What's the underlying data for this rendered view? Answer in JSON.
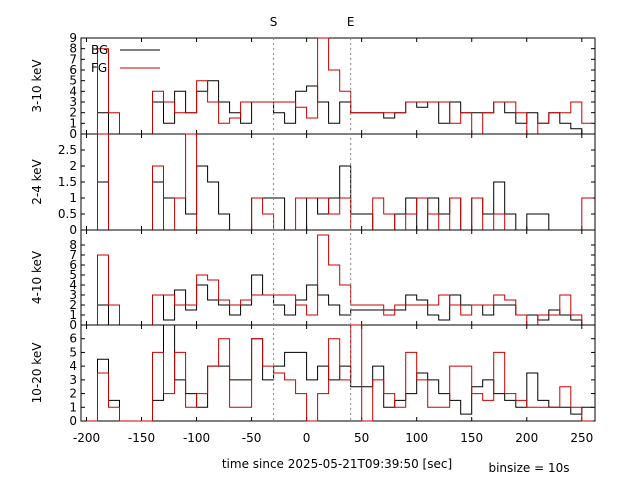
{
  "chart_data": {
    "type": "line",
    "xlabel": "time since 2025-05-21T09:39:50 [sec]",
    "binsize_label": "binsize = 10s",
    "xlim": [
      -205,
      262
    ],
    "x_ticks": [
      -200,
      -150,
      -100,
      -50,
      0,
      50,
      100,
      150,
      200,
      250
    ],
    "markers": [
      {
        "label": "S",
        "x": -30
      },
      {
        "label": "E",
        "x": 40
      }
    ],
    "legend": {
      "placement": "top-left",
      "entries": [
        {
          "name": "BG",
          "color": "#000000"
        },
        {
          "name": "FG",
          "color": "#cc0000"
        }
      ]
    },
    "x": [
      -200,
      -190,
      -180,
      -170,
      -160,
      -150,
      -140,
      -130,
      -120,
      -110,
      -100,
      -90,
      -80,
      -70,
      -60,
      -50,
      -40,
      -30,
      -20,
      -10,
      0,
      10,
      20,
      30,
      40,
      50,
      60,
      70,
      80,
      90,
      100,
      110,
      120,
      130,
      140,
      150,
      160,
      170,
      180,
      190,
      200,
      210,
      220,
      230,
      240,
      250
    ],
    "panels": [
      {
        "ylabel": "3-10 keV",
        "ylim": [
          0,
          9
        ],
        "y_ticks": [
          0,
          1,
          2,
          3,
          4,
          5,
          6,
          7,
          8,
          9
        ],
        "series": [
          {
            "name": "BG",
            "color": "#000000",
            "values": [
              0,
              2,
              0,
              0,
              0,
              0,
              3,
              1,
              4,
              2,
              4,
              5,
              3,
              2,
              1,
              3,
              3,
              2,
              1,
              4,
              4.5,
              3,
              1,
              3,
              2,
              2,
              2,
              1.5,
              2,
              3,
              2.5,
              3,
              1,
              3,
              2,
              2,
              2,
              3,
              2,
              1,
              2,
              1,
              2,
              1,
              0.5,
              0
            ]
          },
          {
            "name": "FG",
            "color": "#cc0000",
            "values": [
              0,
              8,
              2,
              0,
              0,
              0,
              4,
              3,
              2,
              2,
              5,
              3,
              1,
              1.5,
              3,
              3,
              3,
              3,
              3,
              2.5,
              1.5,
              9,
              6,
              4,
              2,
              2,
              2,
              2,
              2,
              3,
              3,
              3,
              3,
              1,
              2,
              0,
              2,
              3,
              3,
              2,
              0,
              1,
              2,
              2,
              3,
              1
            ]
          }
        ]
      },
      {
        "ylabel": "2-4 keV",
        "ylim": [
          0,
          3
        ],
        "y_ticks": [
          0,
          0.5,
          1,
          1.5,
          2,
          2.5
        ],
        "series": [
          {
            "name": "BG",
            "color": "#000000",
            "values": [
              0,
              1.5,
              0,
              0,
              0,
              0,
              1.5,
              1,
              1,
              0.5,
              2,
              1.5,
              0.5,
              0,
              0,
              1,
              1,
              1,
              0,
              0,
              1,
              0.5,
              1,
              2,
              0.5,
              0.5,
              0,
              0,
              0.5,
              1,
              0,
              1,
              0.5,
              1,
              0,
              1,
              0.5,
              1.5,
              0.5,
              0,
              0.5,
              0.5,
              0,
              0,
              0,
              0
            ]
          },
          {
            "name": "FG",
            "color": "#cc0000",
            "values": [
              0,
              3,
              0,
              0,
              0,
              0,
              2,
              0,
              1,
              3,
              0,
              0,
              0,
              0,
              0,
              1,
              0.5,
              0,
              0,
              1,
              1,
              1,
              0.5,
              1,
              0,
              0,
              1,
              0.5,
              0,
              0.5,
              1,
              0.5,
              0,
              1,
              0,
              1,
              0,
              0.5,
              0,
              0,
              0,
              0,
              0,
              0,
              0,
              1
            ]
          }
        ]
      },
      {
        "ylabel": "4-10 keV",
        "ylim": [
          0,
          9.5
        ],
        "y_ticks": [
          0,
          1,
          2,
          3,
          4,
          5,
          6,
          7,
          8
        ],
        "series": [
          {
            "name": "BG",
            "color": "#000000",
            "values": [
              0,
              2,
              0,
              0,
              0,
              0,
              3,
              0.5,
              3.5,
              1.5,
              4,
              2.5,
              2,
              1,
              2,
              5,
              3,
              2,
              1,
              2.5,
              4,
              3,
              2,
              1,
              1.5,
              1.5,
              1.5,
              1.5,
              1.5,
              3,
              2.5,
              1,
              0.5,
              3,
              2,
              2,
              1,
              2,
              2,
              1,
              1,
              0.5,
              1.5,
              1,
              0.5,
              0
            ]
          },
          {
            "name": "FG",
            "color": "#cc0000",
            "values": [
              0,
              7,
              2,
              0,
              0,
              0,
              3,
              3,
              2,
              2,
              5,
              4.5,
              2.5,
              2,
              2.5,
              3,
              3,
              3,
              3,
              2,
              1,
              9,
              6,
              4,
              2,
              2,
              2,
              1,
              2,
              2,
              2,
              2,
              3,
              2,
              1,
              2,
              2,
              3,
              2.5,
              1,
              0,
              1,
              1,
              3,
              1,
              0
            ]
          }
        ]
      },
      {
        "ylabel": "10-20 keV",
        "ylim": [
          0,
          7
        ],
        "y_ticks": [
          0,
          1,
          2,
          3,
          4,
          5,
          6
        ],
        "series": [
          {
            "name": "BG",
            "color": "#000000",
            "values": [
              0,
              4.5,
              1.5,
              0,
              0,
              0,
              1.5,
              7,
              3,
              2,
              1,
              4,
              4,
              3,
              3,
              6,
              3,
              4,
              5,
              5,
              3,
              4,
              3,
              4,
              2.5,
              2.5,
              4,
              1,
              1.5,
              2,
              3.5,
              3,
              2,
              1.5,
              0.5,
              2.5,
              3,
              2,
              1.5,
              1,
              3.5,
              1.5,
              1,
              1,
              0.5,
              1
            ]
          },
          {
            "name": "FG",
            "color": "#cc0000",
            "values": [
              0,
              3.5,
              1,
              0,
              0,
              0,
              5,
              2,
              5,
              1,
              2,
              4,
              6,
              1,
              1,
              6,
              4,
              3.5,
              3,
              2,
              0,
              2,
              6,
              3,
              7,
              0,
              3,
              2,
              1,
              5,
              3,
              1,
              1,
              4,
              4,
              2,
              1.5,
              5,
              2,
              1.5,
              1,
              1,
              1,
              2.5,
              1,
              0
            ]
          }
        ]
      }
    ]
  }
}
